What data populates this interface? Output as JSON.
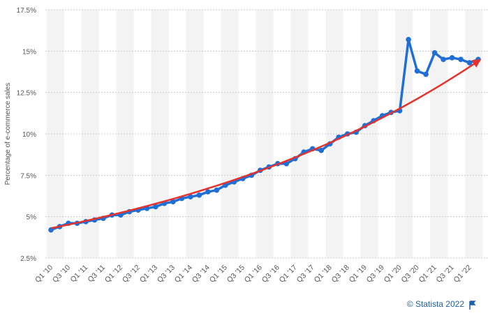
{
  "chart_data": {
    "type": "line",
    "y_label": "Percentage of e-commerce sales",
    "source": "© Statista 2022",
    "categories": [
      "Q1 '10",
      null,
      "Q3 '10",
      null,
      "Q1 '11",
      null,
      "Q3 '11",
      null,
      "Q1 '12",
      null,
      "Q3 '12",
      null,
      "Q1 '13",
      null,
      "Q3 '13",
      null,
      "Q1 '14",
      null,
      "Q3 '14",
      null,
      "Q1 '15",
      null,
      "Q3 '15",
      null,
      "Q1 '16",
      null,
      "Q3 '16",
      null,
      "Q1 '17",
      null,
      "Q3 '17",
      null,
      "Q1 '18",
      null,
      "Q3 '18",
      null,
      "Q1 '19",
      null,
      "Q3 '19",
      null,
      "Q1 '20",
      null,
      "Q3 '20",
      null,
      "Q1 '21",
      null,
      "Q3 '21",
      null,
      "Q1 '22",
      null
    ],
    "series": [
      {
        "color": "#1f6fd6",
        "values": [
          4.2,
          4.4,
          4.6,
          4.6,
          4.7,
          4.8,
          4.9,
          5.1,
          5.1,
          5.3,
          5.4,
          5.5,
          5.6,
          5.8,
          5.9,
          6.1,
          6.2,
          6.3,
          6.5,
          6.6,
          6.9,
          7.1,
          7.3,
          7.5,
          7.8,
          8.0,
          8.2,
          8.2,
          8.5,
          8.9,
          9.1,
          9.0,
          9.4,
          9.8,
          10.0,
          10.1,
          10.5,
          10.8,
          11.1,
          11.3,
          11.4,
          15.7,
          13.8,
          13.6,
          14.9,
          14.5,
          14.6,
          14.5,
          14.3,
          14.5
        ]
      }
    ],
    "trend": {
      "color": "#e8312b",
      "start": 4.3,
      "end": 14.4
    },
    "ylim": [
      2.5,
      17.5
    ],
    "yticks": [
      {
        "value": 2.5,
        "label": "2.5%"
      },
      {
        "value": 5,
        "label": "5%"
      },
      {
        "value": 7.5,
        "label": "7.5%"
      },
      {
        "value": 10,
        "label": "10%"
      },
      {
        "value": 12.5,
        "label": "12.5%"
      },
      {
        "value": 15,
        "label": "15%"
      },
      {
        "value": 17.5,
        "label": "17.5%"
      }
    ],
    "grid": true
  }
}
